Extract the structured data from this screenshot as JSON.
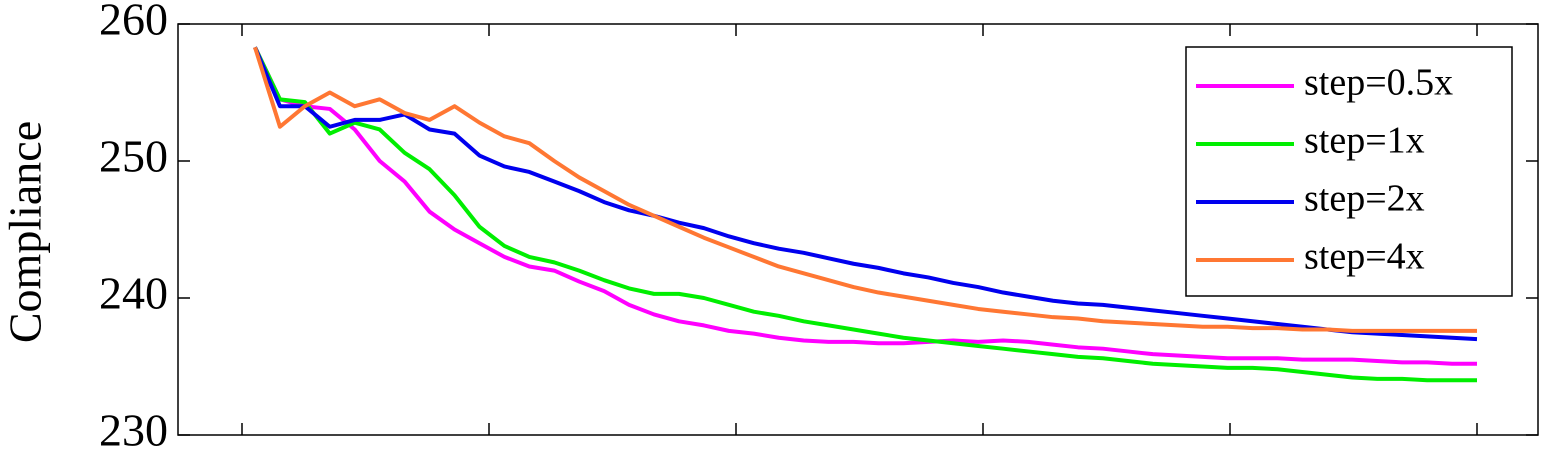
{
  "chart_data": {
    "type": "line",
    "y_label": "Compliance",
    "categories": [
      null,
      null,
      null,
      null,
      null,
      null,
      null,
      null,
      null,
      null,
      null,
      null,
      null,
      null,
      null,
      null,
      null,
      null,
      null,
      null,
      null,
      null,
      null,
      null,
      null,
      null,
      null,
      null,
      null,
      null,
      null,
      null,
      null,
      null,
      null,
      null,
      null,
      null,
      null,
      null,
      null,
      null,
      null,
      null,
      null,
      null,
      null,
      null,
      null,
      null
    ],
    "ylim": [
      230,
      260
    ],
    "yticks": [
      230,
      240,
      250,
      260
    ],
    "legend": "upper right",
    "series": [
      {
        "name": "step=0.5x",
        "color": "#ff00ff",
        "values": [
          258.3,
          254.5,
          254,
          253.8,
          252.3,
          250,
          248.5,
          246.3,
          245,
          244,
          243,
          242.3,
          242,
          241.2,
          240.5,
          239.5,
          238.8,
          238.3,
          238,
          237.6,
          237.4,
          237.1,
          236.9,
          236.8,
          236.8,
          236.7,
          236.7,
          236.8,
          236.9,
          236.8,
          236.9,
          236.8,
          236.6,
          236.4,
          236.3,
          236.1,
          235.9,
          235.8,
          235.7,
          235.6,
          235.6,
          235.6,
          235.5,
          235.5,
          235.5,
          235.4,
          235.3,
          235.3,
          235.2,
          235.2
        ]
      },
      {
        "name": "step=1x",
        "color": "#00ee00",
        "values": [
          258.3,
          254.5,
          254.3,
          252,
          252.8,
          252.3,
          250.6,
          249.4,
          247.5,
          245.2,
          243.8,
          243,
          242.6,
          242,
          241.3,
          240.7,
          240.3,
          240.3,
          240,
          239.5,
          239,
          238.7,
          238.3,
          238,
          237.7,
          237.4,
          237.1,
          236.9,
          236.7,
          236.5,
          236.3,
          236.1,
          235.9,
          235.7,
          235.6,
          235.4,
          235.2,
          235.1,
          235,
          234.9,
          234.9,
          234.8,
          234.6,
          234.4,
          234.2,
          234.1,
          234.1,
          234,
          234,
          234
        ]
      },
      {
        "name": "step=2x",
        "color": "#0000ee",
        "values": [
          258.3,
          254,
          254,
          252.5,
          253,
          253,
          253.4,
          252.3,
          252,
          250.4,
          249.6,
          249.2,
          248.5,
          247.8,
          247,
          246.4,
          246,
          245.5,
          245.1,
          244.5,
          244,
          243.6,
          243.3,
          242.9,
          242.5,
          242.2,
          241.8,
          241.5,
          241.1,
          240.8,
          240.4,
          240.1,
          239.8,
          239.6,
          239.5,
          239.3,
          239.1,
          238.9,
          238.7,
          238.5,
          238.3,
          238.1,
          237.9,
          237.7,
          237.5,
          237.4,
          237.3,
          237.2,
          237.1,
          237.0
        ]
      },
      {
        "name": "step=4x",
        "color": "#ff7733",
        "values": [
          258.3,
          252.5,
          254,
          255,
          254,
          254.5,
          253.5,
          253,
          254,
          252.8,
          251.8,
          251.3,
          250,
          248.8,
          247.8,
          246.8,
          246,
          245.2,
          244.4,
          243.7,
          243,
          242.3,
          241.8,
          241.3,
          240.8,
          240.4,
          240.1,
          239.8,
          239.5,
          239.2,
          239,
          238.8,
          238.6,
          238.5,
          238.3,
          238.2,
          238.1,
          238,
          237.9,
          237.9,
          237.8,
          237.8,
          237.7,
          237.7,
          237.6,
          237.6,
          237.6,
          237.6,
          237.6,
          237.6
        ]
      }
    ]
  }
}
